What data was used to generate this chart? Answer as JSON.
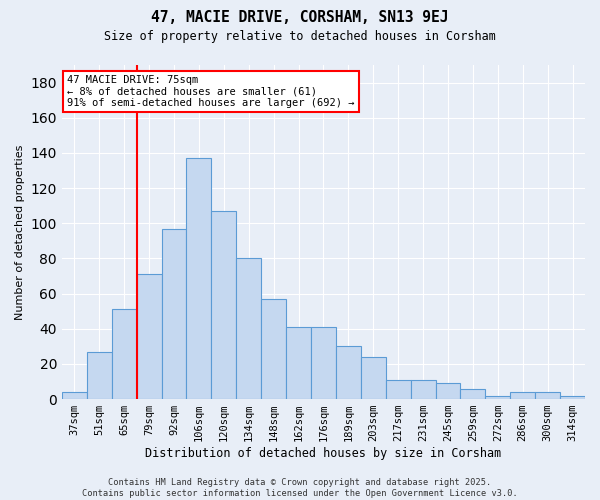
{
  "title": "47, MACIE DRIVE, CORSHAM, SN13 9EJ",
  "subtitle": "Size of property relative to detached houses in Corsham",
  "xlabel": "Distribution of detached houses by size in Corsham",
  "ylabel": "Number of detached properties",
  "categories": [
    "37sqm",
    "51sqm",
    "65sqm",
    "79sqm",
    "92sqm",
    "106sqm",
    "120sqm",
    "134sqm",
    "148sqm",
    "162sqm",
    "176sqm",
    "189sqm",
    "203sqm",
    "217sqm",
    "231sqm",
    "245sqm",
    "259sqm",
    "272sqm",
    "286sqm",
    "300sqm",
    "314sqm"
  ],
  "bar_values": [
    4,
    27,
    51,
    71,
    97,
    137,
    107,
    80,
    57,
    41,
    41,
    30,
    24,
    11,
    11,
    9,
    6,
    2,
    4,
    4,
    2
  ],
  "bar_color": "#c5d8f0",
  "bar_edge_color": "#5b9bd5",
  "vline_x_index": 2.5,
  "vline_color": "red",
  "annotation_text": "47 MACIE DRIVE: 75sqm\n← 8% of detached houses are smaller (61)\n91% of semi-detached houses are larger (692) →",
  "annotation_box_color": "white",
  "annotation_box_edge_color": "red",
  "ylim": [
    0,
    190
  ],
  "yticks": [
    0,
    20,
    40,
    60,
    80,
    100,
    120,
    140,
    160,
    180
  ],
  "background_color": "#e8eef7",
  "grid_color": "white",
  "footer": "Contains HM Land Registry data © Crown copyright and database right 2025.\nContains public sector information licensed under the Open Government Licence v3.0."
}
